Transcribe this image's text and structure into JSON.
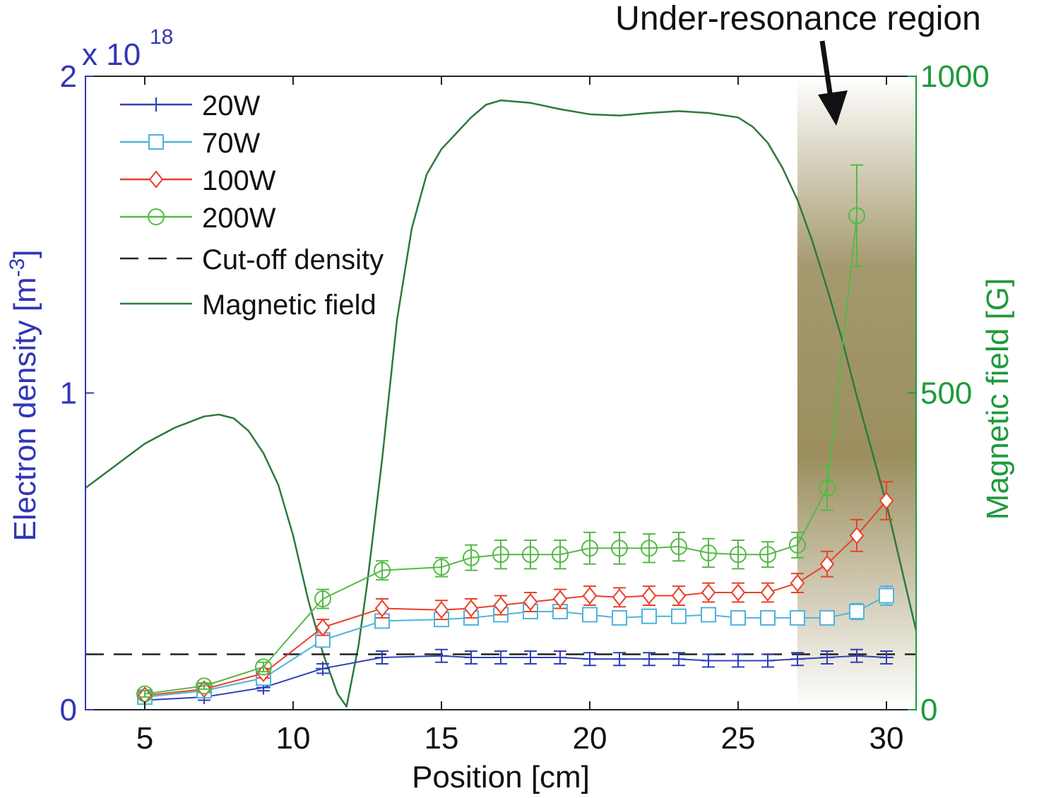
{
  "chart_data": {
    "type": "line",
    "annotation": "Under-resonance region",
    "xlabel": "Position [cm]",
    "ylabel_left": "Electron density [m",
    "ylabel_left_sup": "-3",
    "ylabel_left_end": "]",
    "ylabel_right": "Magnetic field [G]",
    "exponent_base": "x 10",
    "exponent_power": "18",
    "xlim": [
      3,
      31
    ],
    "ylim_left": [
      0,
      2
    ],
    "ylim_right": [
      0,
      1000
    ],
    "x_ticks": [
      5,
      10,
      15,
      20,
      25,
      30
    ],
    "x_tick_labels": [
      "5",
      "10",
      "15",
      "20",
      "25",
      "30"
    ],
    "y_left_ticks": [
      0,
      1,
      2
    ],
    "y_left_tick_labels": [
      "0",
      "1",
      "2"
    ],
    "y_right_ticks": [
      0,
      500,
      1000
    ],
    "y_right_tick_labels": [
      "0",
      "500",
      "1000"
    ],
    "colors": {
      "left_axis": "#3236b4",
      "right_axis": "#1f9a3c",
      "20W": "#3040b8",
      "70W": "#4fb3dc",
      "100W": "#e8402a",
      "200W": "#55b946",
      "magnetic": "#2d7a3c",
      "cutoff": "#222222",
      "shade": "#9b8e5e"
    },
    "shaded_region": {
      "x_start": 27,
      "x_end": 31
    },
    "cutoff_density": 0.175,
    "series": [
      {
        "name": "20W",
        "marker": "plus",
        "x": [
          5,
          7,
          9,
          11,
          13,
          15,
          16,
          17,
          18,
          19,
          20,
          21,
          22,
          23,
          24,
          25,
          26,
          27,
          28,
          29,
          30
        ],
        "y": [
          0.03,
          0.04,
          0.07,
          0.13,
          0.165,
          0.17,
          0.165,
          0.165,
          0.165,
          0.165,
          0.16,
          0.16,
          0.16,
          0.16,
          0.155,
          0.155,
          0.155,
          0.16,
          0.165,
          0.17,
          0.165
        ],
        "err": [
          0.01,
          0.01,
          0.01,
          0.015,
          0.02,
          0.02,
          0.02,
          0.02,
          0.02,
          0.02,
          0.02,
          0.02,
          0.02,
          0.02,
          0.02,
          0.02,
          0.02,
          0.02,
          0.02,
          0.02,
          0.02
        ]
      },
      {
        "name": "70W",
        "marker": "square",
        "x": [
          5,
          7,
          9,
          11,
          13,
          15,
          16,
          17,
          18,
          19,
          20,
          21,
          22,
          23,
          24,
          25,
          26,
          27,
          28,
          29,
          30
        ],
        "y": [
          0.04,
          0.06,
          0.1,
          0.22,
          0.28,
          0.285,
          0.29,
          0.3,
          0.31,
          0.31,
          0.3,
          0.29,
          0.295,
          0.295,
          0.3,
          0.29,
          0.29,
          0.29,
          0.29,
          0.31,
          0.36
        ],
        "err": [
          0.01,
          0.01,
          0.01,
          0.015,
          0.02,
          0.02,
          0.02,
          0.02,
          0.02,
          0.02,
          0.02,
          0.02,
          0.02,
          0.02,
          0.02,
          0.02,
          0.02,
          0.02,
          0.02,
          0.025,
          0.03
        ]
      },
      {
        "name": "100W",
        "marker": "diamond",
        "x": [
          5,
          7,
          9,
          11,
          13,
          15,
          16,
          17,
          18,
          19,
          20,
          21,
          22,
          23,
          24,
          25,
          26,
          27,
          28,
          29,
          30
        ],
        "y": [
          0.045,
          0.065,
          0.115,
          0.26,
          0.32,
          0.315,
          0.32,
          0.33,
          0.34,
          0.35,
          0.36,
          0.355,
          0.36,
          0.36,
          0.37,
          0.37,
          0.37,
          0.4,
          0.46,
          0.55,
          0.66
        ],
        "err": [
          0.01,
          0.01,
          0.015,
          0.025,
          0.03,
          0.03,
          0.03,
          0.03,
          0.03,
          0.03,
          0.03,
          0.03,
          0.03,
          0.03,
          0.03,
          0.03,
          0.03,
          0.03,
          0.04,
          0.05,
          0.06
        ]
      },
      {
        "name": "200W",
        "marker": "circle",
        "x": [
          5,
          7,
          9,
          11,
          13,
          15,
          16,
          17,
          18,
          19,
          20,
          21,
          22,
          23,
          24,
          25,
          26,
          27,
          28,
          29,
          30
        ],
        "y": [
          0.05,
          0.075,
          0.135,
          0.35,
          0.44,
          0.45,
          0.48,
          0.49,
          0.49,
          0.49,
          0.51,
          0.51,
          0.51,
          0.515,
          0.495,
          0.49,
          0.49,
          0.52,
          0.7,
          1.56,
          null
        ],
        "err": [
          0.01,
          0.01,
          0.015,
          0.03,
          0.03,
          0.03,
          0.04,
          0.045,
          0.045,
          0.045,
          0.05,
          0.05,
          0.045,
          0.045,
          0.045,
          0.045,
          0.04,
          0.04,
          0.07,
          0.16,
          null
        ]
      },
      {
        "name": "Cut-off density",
        "style": "dashed",
        "x": [
          3,
          31
        ],
        "y": [
          0.175,
          0.175
        ]
      },
      {
        "name": "Magnetic field",
        "axis": "right",
        "x": [
          3,
          4,
          5,
          6,
          7,
          7.5,
          8,
          8.5,
          9,
          9.5,
          10,
          10.5,
          11,
          11.5,
          11.8,
          12.2,
          12.5,
          13,
          13.5,
          14,
          14.5,
          15,
          15.5,
          16,
          16.5,
          17,
          18,
          19,
          20,
          21,
          22,
          23,
          24,
          25,
          25.5,
          26,
          26.5,
          27,
          27.5,
          28,
          28.5,
          29,
          29.5,
          30,
          30.5,
          31
        ],
        "y": [
          350,
          385,
          420,
          445,
          463,
          466,
          460,
          440,
          405,
          355,
          275,
          175,
          90,
          25,
          5,
          100,
          200,
          395,
          615,
          760,
          845,
          885,
          910,
          935,
          955,
          962,
          958,
          948,
          940,
          938,
          942,
          945,
          942,
          935,
          920,
          895,
          855,
          805,
          740,
          665,
          585,
          495,
          410,
          325,
          225,
          125
        ]
      }
    ],
    "legend_position": "top-left"
  }
}
